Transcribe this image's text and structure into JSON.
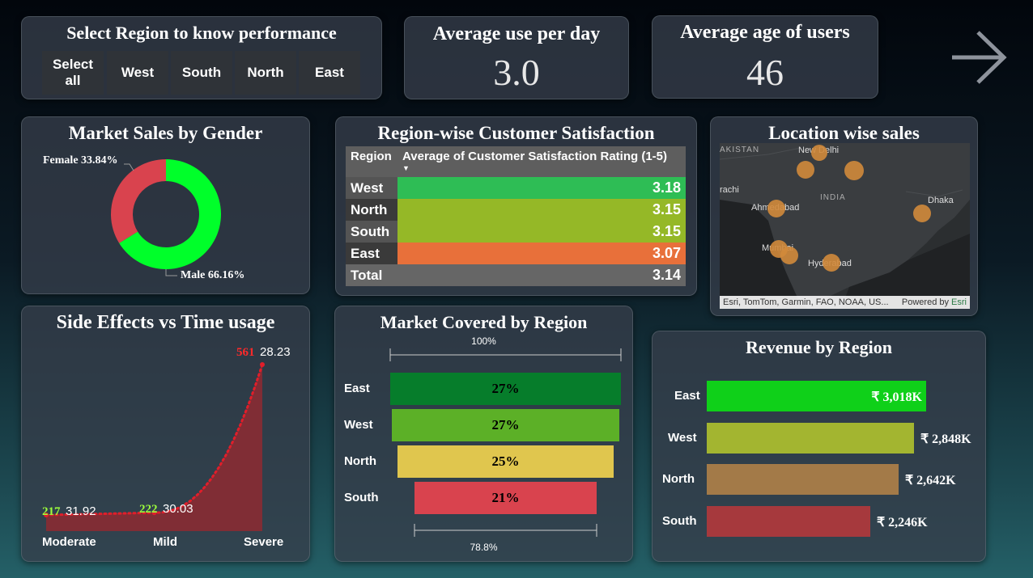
{
  "slicer": {
    "title": "Select Region to know performance",
    "options": [
      "Select all",
      "West",
      "South",
      "North",
      "East"
    ]
  },
  "kpi_use": {
    "title": "Average use per day",
    "value": "3.0"
  },
  "kpi_age": {
    "title": "Average age of users",
    "value": "46"
  },
  "nav": {
    "icon": "arrow-right-icon"
  },
  "gender": {
    "title": "Market Sales by Gender",
    "female_label": "Female 33.84%",
    "male_label": "Male 66.16%",
    "colors": {
      "female": "#d9434e",
      "male": "#00ff2a"
    }
  },
  "satisfaction": {
    "title": "Region-wise Customer Satisfaction",
    "col_region": "Region",
    "col_rating": "Average of Customer Satisfaction Rating (1-5)",
    "rows": [
      {
        "region": "West",
        "value": "3.18",
        "color": "#2ebd55"
      },
      {
        "region": "North",
        "value": "3.15",
        "color": "#95b827"
      },
      {
        "region": "South",
        "value": "3.15",
        "color": "#95b827"
      },
      {
        "region": "East",
        "value": "3.07",
        "color": "#e8703a"
      }
    ],
    "total": {
      "region": "Total",
      "value": "3.14"
    }
  },
  "map": {
    "title": "Location wise sales",
    "labels": [
      "AKISTAN",
      "New Delhi",
      "rachi",
      "INDIA",
      "Ahmedabad",
      "Dhaka",
      "Mumbai",
      "Hyderabad"
    ],
    "attribution": "Esri, TomTom, Garmin, FAO, NOAA, US...",
    "powered": "Powered by",
    "esri": "Esri"
  },
  "side_effects": {
    "title": "Side Effects vs Time usage",
    "points": [
      {
        "category": "Moderate",
        "count": "217",
        "value": "31.92"
      },
      {
        "category": "Mild",
        "count": "222",
        "value": "30.03"
      },
      {
        "category": "Severe",
        "count": "561",
        "value": "28.23"
      }
    ]
  },
  "funnel": {
    "title": "Market Covered by Region",
    "top_label": "100%",
    "bottom_label": "78.8%",
    "rows": [
      {
        "region": "East",
        "value": "27%",
        "color": "#067d2b"
      },
      {
        "region": "West",
        "value": "27%",
        "color": "#5cb027"
      },
      {
        "region": "North",
        "value": "25%",
        "color": "#e0c64e"
      },
      {
        "region": "South",
        "value": "21%",
        "color": "#d9434e"
      }
    ]
  },
  "revenue": {
    "title": "Revenue by Region",
    "rows": [
      {
        "region": "East",
        "value": 3018,
        "label": "₹ 3,018K",
        "color": "#0fd019"
      },
      {
        "region": "West",
        "value": 2848,
        "label": "₹ 2,848K",
        "color": "#a3b530"
      },
      {
        "region": "North",
        "value": 2642,
        "label": "₹ 2,642K",
        "color": "#a37a48"
      },
      {
        "region": "South",
        "value": 2246,
        "label": "₹ 2,246K",
        "color": "#a6393d"
      }
    ]
  },
  "chart_data": [
    {
      "type": "pie",
      "title": "Market Sales by Gender",
      "categories": [
        "Female",
        "Male"
      ],
      "values": [
        33.84,
        66.16
      ]
    },
    {
      "type": "area",
      "title": "Side Effects vs Time usage",
      "categories": [
        "Moderate",
        "Mild",
        "Severe"
      ],
      "values": [
        217,
        222,
        561
      ]
    },
    {
      "type": "bar",
      "title": "Market Covered by Region",
      "categories": [
        "East",
        "West",
        "North",
        "South"
      ],
      "values": [
        27,
        27,
        25,
        21
      ]
    },
    {
      "type": "bar",
      "title": "Revenue by Region",
      "categories": [
        "East",
        "West",
        "North",
        "South"
      ],
      "values": [
        3018,
        2848,
        2642,
        2246
      ]
    }
  ]
}
